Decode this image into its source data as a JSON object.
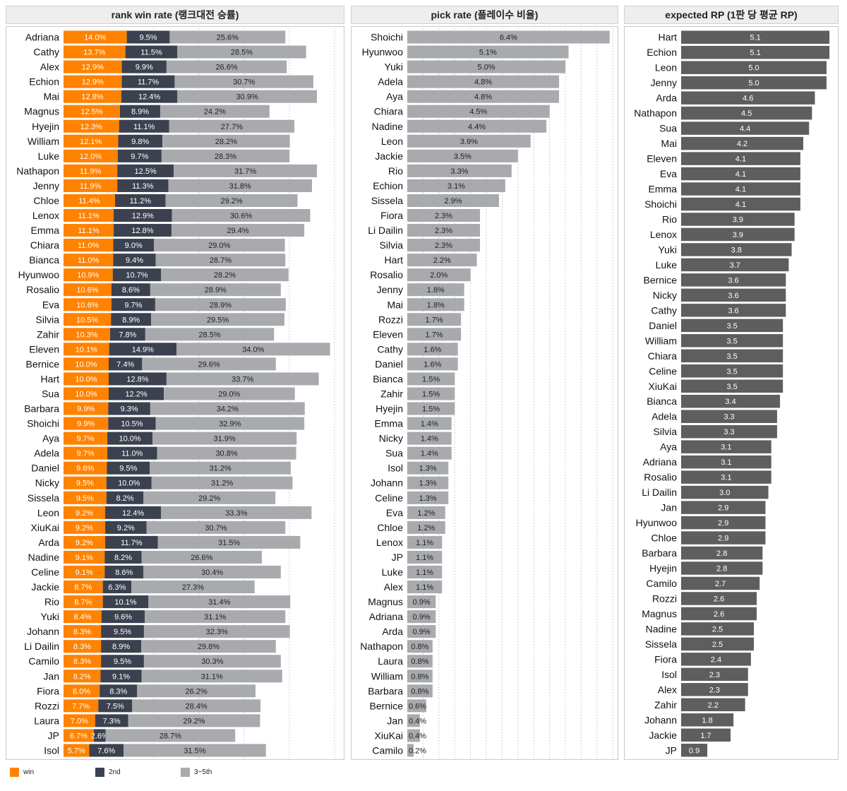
{
  "panels": {
    "rank": {
      "title": "rank win rate (랭크대전 승률)",
      "categories": [
        "Adriana",
        "Cathy",
        "Alex",
        "Echion",
        "Mai",
        "Magnus",
        "Hyejin",
        "William",
        "Luke",
        "Nathapon",
        "Jenny",
        "Chloe",
        "Lenox",
        "Emma",
        "Chiara",
        "Bianca",
        "Hyunwoo",
        "Rosalio",
        "Eva",
        "Silvia",
        "Zahir",
        "Eleven",
        "Bernice",
        "Hart",
        "Sua",
        "Barbara",
        "Shoichi",
        "Aya",
        "Adela",
        "Daniel",
        "Nicky",
        "Sissela",
        "Leon",
        "XiuKai",
        "Arda",
        "Nadine",
        "Celine",
        "Jackie",
        "Rio",
        "Yuki",
        "Johann",
        "Li Dailin",
        "Camilo",
        "Jan",
        "Fiora",
        "Rozzi",
        "Laura",
        "JP",
        "Isol"
      ],
      "series": [
        {
          "name": "win",
          "color": "#ff8200",
          "values": [
            14.0,
            13.7,
            12.9,
            12.9,
            12.8,
            12.5,
            12.3,
            12.1,
            12.0,
            11.9,
            11.9,
            11.4,
            11.1,
            11.1,
            11.0,
            11.0,
            10.9,
            10.6,
            10.6,
            10.5,
            10.3,
            10.1,
            10.0,
            10.0,
            10.0,
            9.9,
            9.9,
            9.7,
            9.7,
            9.6,
            9.5,
            9.5,
            9.2,
            9.2,
            9.2,
            9.1,
            9.1,
            8.7,
            8.7,
            8.4,
            8.3,
            8.3,
            8.3,
            8.2,
            8.0,
            7.7,
            7.0,
            6.7,
            5.7
          ]
        },
        {
          "name": "2nd",
          "color": "#3c4150",
          "values": [
            9.5,
            11.5,
            9.9,
            11.7,
            12.4,
            8.9,
            11.1,
            9.8,
            9.7,
            12.5,
            11.3,
            11.2,
            12.9,
            12.8,
            9.0,
            9.4,
            10.7,
            8.6,
            9.7,
            8.9,
            7.8,
            14.9,
            7.4,
            12.8,
            12.2,
            9.3,
            10.5,
            10.0,
            11.0,
            9.5,
            10.0,
            8.2,
            12.4,
            9.2,
            11.7,
            8.2,
            8.6,
            6.3,
            10.1,
            9.6,
            9.5,
            8.9,
            9.5,
            9.1,
            8.3,
            7.5,
            7.3,
            2.6,
            7.6
          ]
        },
        {
          "name": "3~5th",
          "color": "#a8aaae",
          "values": [
            25.6,
            28.5,
            26.6,
            30.7,
            30.9,
            24.2,
            27.7,
            28.2,
            28.3,
            31.7,
            31.8,
            29.2,
            30.6,
            29.4,
            29.0,
            28.7,
            28.2,
            28.9,
            28.9,
            29.5,
            28.5,
            34.0,
            29.6,
            33.7,
            29.0,
            34.2,
            32.9,
            31.9,
            30.8,
            31.2,
            31.2,
            29.2,
            33.3,
            30.7,
            31.5,
            26.6,
            30.4,
            27.3,
            31.4,
            31.1,
            32.3,
            29.8,
            30.3,
            31.1,
            26.2,
            28.4,
            29.2,
            28.7,
            31.5
          ]
        }
      ]
    },
    "pick": {
      "title": "pick rate (플레이수 비율)",
      "color": "#a8aaae",
      "categories": [
        "Shoichi",
        "Hyunwoo",
        "Yuki",
        "Adela",
        "Aya",
        "Chiara",
        "Nadine",
        "Leon",
        "Jackie",
        "Rio",
        "Echion",
        "Sissela",
        "Fiora",
        "Li Dailin",
        "Silvia",
        "Hart",
        "Rosalio",
        "Jenny",
        "Mai",
        "Rozzi",
        "Eleven",
        "Cathy",
        "Daniel",
        "Bianca",
        "Zahir",
        "Hyejin",
        "Emma",
        "Nicky",
        "Sua",
        "Isol",
        "Johann",
        "Celine",
        "Eva",
        "Chloe",
        "Lenox",
        "JP",
        "Luke",
        "Alex",
        "Magnus",
        "Adriana",
        "Arda",
        "Nathapon",
        "Laura",
        "William",
        "Barbara",
        "Bernice",
        "Jan",
        "XiuKai",
        "Camilo"
      ],
      "values": [
        6.4,
        5.1,
        5.0,
        4.8,
        4.8,
        4.5,
        4.4,
        3.9,
        3.5,
        3.3,
        3.1,
        2.9,
        2.3,
        2.3,
        2.3,
        2.2,
        2.0,
        1.8,
        1.8,
        1.7,
        1.7,
        1.6,
        1.6,
        1.5,
        1.5,
        1.5,
        1.4,
        1.4,
        1.4,
        1.3,
        1.3,
        1.3,
        1.2,
        1.2,
        1.1,
        1.1,
        1.1,
        1.1,
        0.9,
        0.9,
        0.9,
        0.8,
        0.8,
        0.8,
        0.8,
        0.6,
        0.4,
        0.4,
        0.2
      ],
      "value_suffix": "%"
    },
    "rp": {
      "title": "expected RP (1판 당 평균 RP)",
      "color": "#5e5e5e",
      "categories": [
        "Hart",
        "Echion",
        "Leon",
        "Jenny",
        "Arda",
        "Nathapon",
        "Sua",
        "Mai",
        "Eleven",
        "Eva",
        "Emma",
        "Shoichi",
        "Rio",
        "Lenox",
        "Yuki",
        "Luke",
        "Bernice",
        "Nicky",
        "Cathy",
        "Daniel",
        "William",
        "Chiara",
        "Celine",
        "XiuKai",
        "Bianca",
        "Adela",
        "Silvia",
        "Aya",
        "Adriana",
        "Rosalio",
        "Li Dailin",
        "Jan",
        "Hyunwoo",
        "Chloe",
        "Barbara",
        "Hyejin",
        "Camilo",
        "Rozzi",
        "Magnus",
        "Nadine",
        "Sissela",
        "Fiora",
        "Isol",
        "Alex",
        "Zahir",
        "Johann",
        "Jackie",
        "JP"
      ],
      "values": [
        5.1,
        5.1,
        5.0,
        5.0,
        4.6,
        4.5,
        4.4,
        4.2,
        4.1,
        4.1,
        4.1,
        4.1,
        3.9,
        3.9,
        3.8,
        3.7,
        3.6,
        3.6,
        3.6,
        3.5,
        3.5,
        3.5,
        3.5,
        3.5,
        3.4,
        3.3,
        3.3,
        3.1,
        3.1,
        3.1,
        3.0,
        2.9,
        2.9,
        2.9,
        2.8,
        2.8,
        2.7,
        2.6,
        2.6,
        2.5,
        2.5,
        2.4,
        2.3,
        2.3,
        2.2,
        1.8,
        1.7,
        0.9
      ]
    }
  },
  "legend": [
    {
      "label": "win",
      "color": "#ff8200"
    },
    {
      "label": "2nd",
      "color": "#3c4150"
    },
    {
      "label": "3~5th",
      "color": "#a8aaae"
    }
  ],
  "chart_data": [
    {
      "type": "bar",
      "orientation": "horizontal",
      "stacked": true,
      "title": "rank win rate (랭크대전 승률)",
      "categories": "see panels.rank.categories",
      "series_ref": "panels.rank.series"
    },
    {
      "type": "bar",
      "orientation": "horizontal",
      "title": "pick rate (플레이수 비율)",
      "values_ref": "panels.pick.values"
    },
    {
      "type": "bar",
      "orientation": "horizontal",
      "title": "expected RP (1판 당 평균 RP)",
      "values_ref": "panels.rp.values"
    }
  ]
}
